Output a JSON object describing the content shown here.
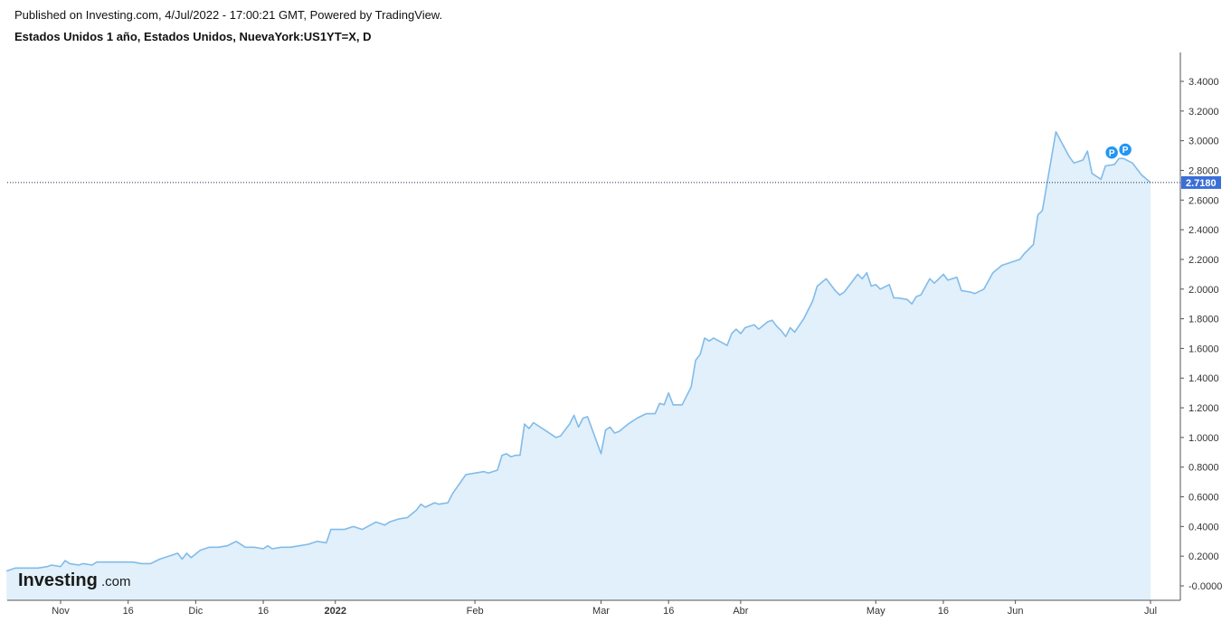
{
  "header": {
    "published": "Published on Investing.com, 4/Jul/2022 - 17:00:21 GMT, Powered by TradingView.",
    "title": "Estados Unidos 1 año, Estados Unidos, NuevaYork:US1YT=X, D"
  },
  "logo": {
    "main": "Investing",
    "suffix": ".com"
  },
  "colors": {
    "line": "#82bbe9",
    "fill": "#e1f0fa",
    "price_label_bg": "#3a6fd8",
    "marker": "#2196f3",
    "last_price_line": "#1a2a4a"
  },
  "chart_data": {
    "type": "area",
    "title": "Estados Unidos 1 año, Estados Unidos, NuevaYork:US1YT=X, D",
    "ylim": [
      -0.06,
      3.6
    ],
    "y_ticks": [
      -0.0,
      0.2,
      0.4,
      0.6,
      0.8,
      1.0,
      1.2,
      1.4,
      1.6,
      1.8,
      2.0,
      2.2,
      2.4,
      2.6,
      2.8,
      3.0,
      3.2,
      3.4
    ],
    "y_tick_labels": [
      "-0.0000",
      "0.2000",
      "0.4000",
      "0.6000",
      "0.8000",
      "1.0000",
      "1.2000",
      "1.4000",
      "1.6000",
      "1.8000",
      "2.0000",
      "2.2000",
      "2.4000",
      "2.6000",
      "2.8000",
      "3.0000",
      "3.2000",
      "3.4000"
    ],
    "x_ticks": [
      {
        "label": "Nov",
        "date": "2021-11-01",
        "bold": false
      },
      {
        "label": "16",
        "date": "2021-11-16",
        "bold": false
      },
      {
        "label": "Dic",
        "date": "2021-12-01",
        "bold": false
      },
      {
        "label": "16",
        "date": "2021-12-16",
        "bold": false
      },
      {
        "label": "2022",
        "date": "2022-01-01",
        "bold": true
      },
      {
        "label": "Feb",
        "date": "2022-02-01",
        "bold": false
      },
      {
        "label": "Mar",
        "date": "2022-03-01",
        "bold": false
      },
      {
        "label": "16",
        "date": "2022-03-16",
        "bold": false
      },
      {
        "label": "Abr",
        "date": "2022-04-01",
        "bold": false
      },
      {
        "label": "May",
        "date": "2022-05-01",
        "bold": false
      },
      {
        "label": "16",
        "date": "2022-05-16",
        "bold": false
      },
      {
        "label": "Jun",
        "date": "2022-06-01",
        "bold": false
      },
      {
        "label": "Jul",
        "date": "2022-07-01",
        "bold": false
      }
    ],
    "x_range": [
      "2021-10-20",
      "2022-07-07"
    ],
    "last_price": 2.718,
    "last_price_label": "2.7180",
    "markers": [
      {
        "label": "P",
        "date": "2022-06-23",
        "y": 2.92
      },
      {
        "label": "P",
        "date": "2022-06-25",
        "y": 2.94
      }
    ],
    "series": [
      {
        "points": [
          [
            "2021-10-20",
            0.1
          ],
          [
            "2021-10-22",
            0.12
          ],
          [
            "2021-10-25",
            0.12
          ],
          [
            "2021-10-27",
            0.12
          ],
          [
            "2021-10-29",
            0.13
          ],
          [
            "2021-10-30",
            0.14
          ],
          [
            "2021-11-01",
            0.13
          ],
          [
            "2021-11-02",
            0.17
          ],
          [
            "2021-11-03",
            0.15
          ],
          [
            "2021-11-05",
            0.14
          ],
          [
            "2021-11-06",
            0.15
          ],
          [
            "2021-11-08",
            0.14
          ],
          [
            "2021-11-09",
            0.16
          ],
          [
            "2021-11-11",
            0.16
          ],
          [
            "2021-11-15",
            0.16
          ],
          [
            "2021-11-17",
            0.16
          ],
          [
            "2021-11-19",
            0.15
          ],
          [
            "2021-11-21",
            0.15
          ],
          [
            "2021-11-23",
            0.18
          ],
          [
            "2021-11-25",
            0.2
          ],
          [
            "2021-11-27",
            0.22
          ],
          [
            "2021-11-28",
            0.18
          ],
          [
            "2021-11-29",
            0.22
          ],
          [
            "2021-11-30",
            0.19
          ],
          [
            "2021-12-02",
            0.24
          ],
          [
            "2021-12-04",
            0.26
          ],
          [
            "2021-12-06",
            0.26
          ],
          [
            "2021-12-08",
            0.27
          ],
          [
            "2021-12-10",
            0.3
          ],
          [
            "2021-12-12",
            0.26
          ],
          [
            "2021-12-14",
            0.26
          ],
          [
            "2021-12-16",
            0.25
          ],
          [
            "2021-12-17",
            0.27
          ],
          [
            "2021-12-18",
            0.25
          ],
          [
            "2021-12-20",
            0.26
          ],
          [
            "2021-12-22",
            0.26
          ],
          [
            "2021-12-24",
            0.27
          ],
          [
            "2021-12-26",
            0.28
          ],
          [
            "2021-12-28",
            0.3
          ],
          [
            "2021-12-30",
            0.29
          ],
          [
            "2021-12-31",
            0.38
          ],
          [
            "2022-01-01",
            0.38
          ],
          [
            "2022-01-03",
            0.38
          ],
          [
            "2022-01-05",
            0.4
          ],
          [
            "2022-01-06",
            0.39
          ],
          [
            "2022-01-07",
            0.38
          ],
          [
            "2022-01-10",
            0.43
          ],
          [
            "2022-01-12",
            0.41
          ],
          [
            "2022-01-13",
            0.43
          ],
          [
            "2022-01-15",
            0.45
          ],
          [
            "2022-01-17",
            0.46
          ],
          [
            "2022-01-19",
            0.51
          ],
          [
            "2022-01-20",
            0.55
          ],
          [
            "2022-01-21",
            0.53
          ],
          [
            "2022-01-23",
            0.56
          ],
          [
            "2022-01-24",
            0.55
          ],
          [
            "2022-01-26",
            0.56
          ],
          [
            "2022-01-27",
            0.62
          ],
          [
            "2022-01-30",
            0.75
          ],
          [
            "2022-02-01",
            0.76
          ],
          [
            "2022-02-03",
            0.77
          ],
          [
            "2022-02-04",
            0.76
          ],
          [
            "2022-02-06",
            0.78
          ],
          [
            "2022-02-07",
            0.88
          ],
          [
            "2022-02-08",
            0.89
          ],
          [
            "2022-02-09",
            0.87
          ],
          [
            "2022-02-10",
            0.88
          ],
          [
            "2022-02-11",
            0.88
          ],
          [
            "2022-02-12",
            1.09
          ],
          [
            "2022-02-13",
            1.06
          ],
          [
            "2022-02-14",
            1.1
          ],
          [
            "2022-02-17",
            1.04
          ],
          [
            "2022-02-19",
            1.0
          ],
          [
            "2022-02-20",
            1.01
          ],
          [
            "2022-02-22",
            1.09
          ],
          [
            "2022-02-23",
            1.15
          ],
          [
            "2022-02-24",
            1.07
          ],
          [
            "2022-02-25",
            1.13
          ],
          [
            "2022-02-26",
            1.14
          ],
          [
            "2022-03-01",
            0.89
          ],
          [
            "2022-03-02",
            1.05
          ],
          [
            "2022-03-03",
            1.07
          ],
          [
            "2022-03-04",
            1.03
          ],
          [
            "2022-03-05",
            1.04
          ],
          [
            "2022-03-07",
            1.09
          ],
          [
            "2022-03-09",
            1.13
          ],
          [
            "2022-03-11",
            1.16
          ],
          [
            "2022-03-13",
            1.16
          ],
          [
            "2022-03-14",
            1.23
          ],
          [
            "2022-03-15",
            1.22
          ],
          [
            "2022-03-16",
            1.3
          ],
          [
            "2022-03-17",
            1.22
          ],
          [
            "2022-03-19",
            1.22
          ],
          [
            "2022-03-21",
            1.34
          ],
          [
            "2022-03-22",
            1.52
          ],
          [
            "2022-03-23",
            1.56
          ],
          [
            "2022-03-24",
            1.67
          ],
          [
            "2022-03-25",
            1.65
          ],
          [
            "2022-03-26",
            1.67
          ],
          [
            "2022-03-29",
            1.62
          ],
          [
            "2022-03-30",
            1.7
          ],
          [
            "2022-03-31",
            1.73
          ],
          [
            "2022-04-01",
            1.7
          ],
          [
            "2022-04-02",
            1.74
          ],
          [
            "2022-04-04",
            1.76
          ],
          [
            "2022-04-05",
            1.73
          ],
          [
            "2022-04-07",
            1.78
          ],
          [
            "2022-04-08",
            1.79
          ],
          [
            "2022-04-09",
            1.75
          ],
          [
            "2022-04-10",
            1.72
          ],
          [
            "2022-04-11",
            1.68
          ],
          [
            "2022-04-12",
            1.74
          ],
          [
            "2022-04-13",
            1.71
          ],
          [
            "2022-04-15",
            1.8
          ],
          [
            "2022-04-17",
            1.92
          ],
          [
            "2022-04-18",
            2.02
          ],
          [
            "2022-04-20",
            2.07
          ],
          [
            "2022-04-22",
            1.99
          ],
          [
            "2022-04-23",
            1.96
          ],
          [
            "2022-04-24",
            1.98
          ],
          [
            "2022-04-26",
            2.06
          ],
          [
            "2022-04-27",
            2.1
          ],
          [
            "2022-04-28",
            2.07
          ],
          [
            "2022-04-29",
            2.11
          ],
          [
            "2022-04-30",
            2.02
          ],
          [
            "2022-05-01",
            2.03
          ],
          [
            "2022-05-02",
            2.0
          ],
          [
            "2022-05-04",
            2.03
          ],
          [
            "2022-05-05",
            1.94
          ],
          [
            "2022-05-06",
            1.94
          ],
          [
            "2022-05-08",
            1.93
          ],
          [
            "2022-05-09",
            1.9
          ],
          [
            "2022-05-10",
            1.95
          ],
          [
            "2022-05-11",
            1.96
          ],
          [
            "2022-05-13",
            2.07
          ],
          [
            "2022-05-14",
            2.04
          ],
          [
            "2022-05-16",
            2.1
          ],
          [
            "2022-05-17",
            2.06
          ],
          [
            "2022-05-19",
            2.08
          ],
          [
            "2022-05-20",
            1.99
          ],
          [
            "2022-05-22",
            1.98
          ],
          [
            "2022-05-23",
            1.97
          ],
          [
            "2022-05-25",
            2.0
          ],
          [
            "2022-05-27",
            2.11
          ],
          [
            "2022-05-29",
            2.16
          ],
          [
            "2022-06-02",
            2.2
          ],
          [
            "2022-06-03",
            2.24
          ],
          [
            "2022-06-05",
            2.3
          ],
          [
            "2022-06-06",
            2.5
          ],
          [
            "2022-06-07",
            2.53
          ],
          [
            "2022-06-10",
            3.06
          ],
          [
            "2022-06-13",
            2.89
          ],
          [
            "2022-06-14",
            2.85
          ],
          [
            "2022-06-16",
            2.87
          ],
          [
            "2022-06-17",
            2.93
          ],
          [
            "2022-06-18",
            2.78
          ],
          [
            "2022-06-20",
            2.74
          ],
          [
            "2022-06-21",
            2.83
          ],
          [
            "2022-06-23",
            2.84
          ],
          [
            "2022-06-24",
            2.88
          ],
          [
            "2022-06-25",
            2.88
          ],
          [
            "2022-06-27",
            2.85
          ],
          [
            "2022-06-29",
            2.77
          ],
          [
            "2022-07-01",
            2.718
          ]
        ]
      }
    ]
  }
}
